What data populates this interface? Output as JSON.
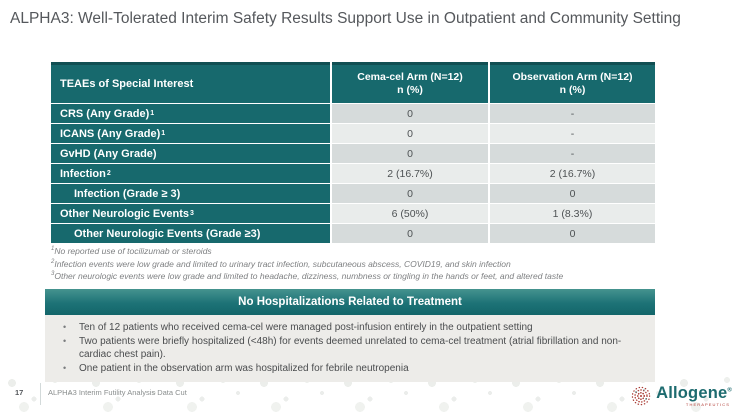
{
  "slide": {
    "title": "ALPHA3: Well-Tolerated Interim Safety Results Support Use in Outpatient and Community Setting",
    "page_number": "17",
    "footer_note": "ALPHA3 Interim Futility Analysis Data Cut"
  },
  "colors": {
    "teal": "#17696d",
    "teal_dark_border": "#114f53",
    "banner_gradient_top": "#45938f",
    "banner_gradient_bottom": "#13666a",
    "row_dark": "#d6dbdb",
    "row_light": "#e9eceb",
    "title_text": "#55585c",
    "footnote_text": "#7f8183",
    "logo_teal": "#1d6b6f",
    "logo_red": "#b03a33",
    "callout_box_bg": "#edece9"
  },
  "table": {
    "col1_header": "TEAEs of Special Interest",
    "col2_header_line1": "Cema-cel Arm (N=12)",
    "col2_header_line2": "n (%)",
    "col3_header_line1": "Observation Arm (N=12)",
    "col3_header_line2": "n (%)",
    "rows": [
      {
        "label": "CRS (Any Grade)",
        "sup": "1",
        "indent": false,
        "cema": "0",
        "obs": "-"
      },
      {
        "label": "ICANS (Any Grade)",
        "sup": "1",
        "indent": false,
        "cema": "0",
        "obs": "-"
      },
      {
        "label": "GvHD (Any Grade)",
        "sup": "",
        "indent": false,
        "cema": "0",
        "obs": "-"
      },
      {
        "label": "Infection",
        "sup": "2",
        "indent": false,
        "cema": "2 (16.7%)",
        "obs": "2 (16.7%)"
      },
      {
        "label": "Infection (Grade ≥ 3)",
        "sup": "",
        "indent": true,
        "cema": "0",
        "obs": "0"
      },
      {
        "label": "Other Neurologic Events",
        "sup": "3",
        "indent": false,
        "cema": "6 (50%)",
        "obs": "1 (8.3%)"
      },
      {
        "label": "Other Neurologic Events (Grade ≥3)",
        "sup": "",
        "indent": true,
        "cema": "0",
        "obs": "0"
      }
    ]
  },
  "footnotes": [
    {
      "sup": "1",
      "text": "No reported use of tocilizumab or steroids"
    },
    {
      "sup": "2",
      "text": "Infection events were low grade and limited to urinary tract infection, subcutaneous abscess, COVID19, and skin infection"
    },
    {
      "sup": "3",
      "text": "Other neurologic events were low grade and limited to headache, dizziness, numbness or tingling in the hands or feet, and altered taste"
    }
  ],
  "callout": {
    "title": "No Hospitalizations Related to Treatment",
    "bullets": [
      "Ten of 12 patients who received cema-cel were managed post-infusion entirely in the outpatient setting",
      "Two patients were briefly hospitalized (<48h) for events deemed unrelated to cema-cel treatment (atrial fibrillation and non-cardiac chest pain).",
      "One patient in the observation arm was hospitalized for febrile neutropenia"
    ]
  },
  "logo": {
    "word": "Allogene",
    "trademark": "®",
    "sub": "THERAPEUTICS"
  }
}
